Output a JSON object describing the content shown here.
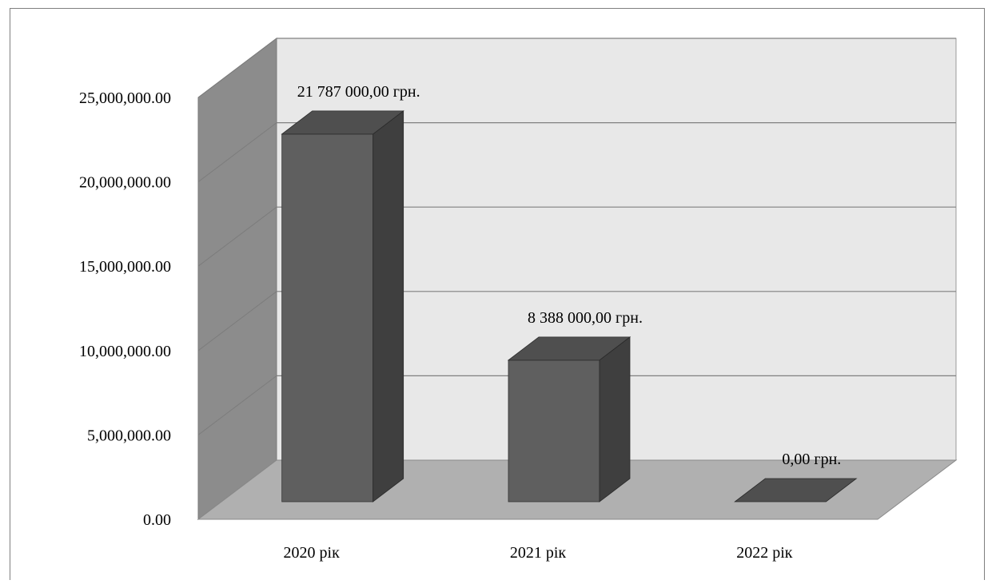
{
  "chart_data": {
    "type": "bar",
    "style": "3d-column",
    "categories": [
      "2020 рік",
      "2021 рік",
      "2022 рік"
    ],
    "values": [
      21787000,
      8388000,
      0
    ],
    "data_labels": [
      "21 787 000,00 грн.",
      "8 388 000,00 грн.",
      "0,00 грн."
    ],
    "y_ticks": [
      "0.00",
      "5,000,000.00",
      "10,000,000.00",
      "15,000,000.00",
      "20,000,000.00",
      "25,000,000.00"
    ],
    "ylim": [
      0,
      25000000
    ],
    "grid": true,
    "title": "",
    "xlabel": "",
    "ylabel": "",
    "colors": {
      "bar_front": "#5f5f5f",
      "bar_side": "#3f3f3f",
      "bar_top": "#4f4f4f",
      "back_wall": "#e8e8e8",
      "side_wall": "#8c8c8c",
      "floor": "#b0b0b0",
      "gridline": "#808080"
    }
  }
}
